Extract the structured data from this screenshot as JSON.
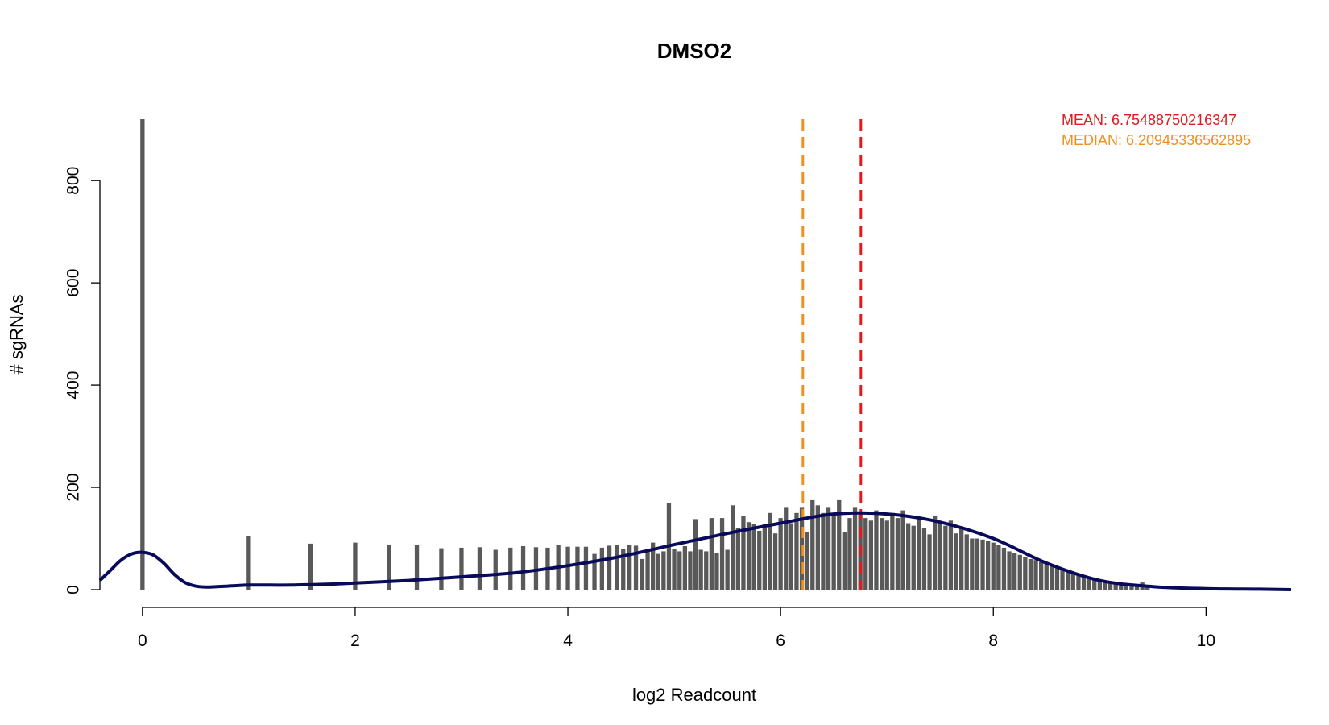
{
  "chart_data": {
    "type": "bar",
    "title": "DMSO2",
    "xlabel": "log2 Readcount",
    "ylabel": "# sgRNAs",
    "xlim": [
      -0.4,
      10.8
    ],
    "ylim": [
      0,
      920
    ],
    "x_ticks": [
      0,
      2,
      4,
      6,
      8,
      10
    ],
    "y_ticks": [
      0,
      200,
      400,
      600,
      800
    ],
    "bin_width": 0.05,
    "bar_color": "#595959",
    "histogram": {
      "x": [
        0.0,
        1.0,
        1.58,
        2.0,
        2.32,
        2.58,
        2.81,
        3.0,
        3.17,
        3.32,
        3.46,
        3.58,
        3.7,
        3.81,
        3.91,
        4.0,
        4.09,
        4.17,
        4.25,
        4.32,
        4.39,
        4.46,
        4.52,
        4.58,
        4.64,
        4.7,
        4.75,
        4.8,
        4.85,
        4.9,
        4.95,
        5.0,
        5.05,
        5.1,
        5.15,
        5.2,
        5.25,
        5.3,
        5.35,
        5.4,
        5.45,
        5.5,
        5.55,
        5.6,
        5.65,
        5.7,
        5.75,
        5.8,
        5.85,
        5.9,
        5.95,
        6.0,
        6.05,
        6.1,
        6.15,
        6.2,
        6.25,
        6.3,
        6.35,
        6.4,
        6.45,
        6.5,
        6.55,
        6.6,
        6.65,
        6.7,
        6.75,
        6.8,
        6.85,
        6.9,
        6.95,
        7.0,
        7.05,
        7.1,
        7.15,
        7.2,
        7.25,
        7.3,
        7.35,
        7.4,
        7.45,
        7.5,
        7.55,
        7.6,
        7.65,
        7.7,
        7.75,
        7.8,
        7.85,
        7.9,
        7.95,
        8.0,
        8.05,
        8.1,
        8.15,
        8.2,
        8.25,
        8.3,
        8.35,
        8.4,
        8.45,
        8.5,
        8.55,
        8.6,
        8.65,
        8.7,
        8.75,
        8.8,
        8.85,
        8.9,
        8.95,
        9.0,
        9.05,
        9.1,
        9.15,
        9.2,
        9.25,
        9.3,
        9.35,
        9.4,
        9.45
      ],
      "counts": [
        920,
        105,
        90,
        92,
        87,
        87,
        81,
        82,
        83,
        78,
        82,
        85,
        83,
        82,
        88,
        84,
        84,
        84,
        70,
        82,
        86,
        88,
        80,
        88,
        86,
        60,
        80,
        92,
        70,
        75,
        170,
        80,
        75,
        85,
        75,
        138,
        78,
        75,
        140,
        72,
        140,
        78,
        165,
        120,
        145,
        132,
        128,
        115,
        128,
        150,
        110,
        140,
        160,
        130,
        150,
        160,
        112,
        175,
        165,
        150,
        160,
        150,
        175,
        112,
        140,
        160,
        148,
        140,
        135,
        155,
        140,
        135,
        150,
        140,
        155,
        130,
        125,
        140,
        120,
        108,
        145,
        130,
        125,
        135,
        110,
        120,
        108,
        100,
        100,
        98,
        95,
        92,
        88,
        82,
        75,
        72,
        68,
        64,
        60,
        58,
        54,
        50,
        46,
        42,
        38,
        36,
        32,
        28,
        25,
        22,
        20,
        18,
        16,
        16,
        14,
        13,
        12,
        11,
        10,
        14,
        8
      ]
    },
    "density_curve": {
      "color": "#0a0a5c",
      "x": [
        -0.4,
        -0.3,
        -0.2,
        -0.1,
        0.0,
        0.1,
        0.2,
        0.3,
        0.4,
        0.5,
        0.6,
        0.7,
        0.8,
        0.9,
        1.0,
        1.2,
        1.4,
        1.6,
        1.8,
        2.0,
        2.5,
        3.0,
        3.5,
        4.0,
        4.5,
        5.0,
        5.5,
        6.0,
        6.5,
        7.0,
        7.5,
        8.0,
        8.5,
        9.0,
        9.5,
        10.0,
        10.5,
        10.8
      ],
      "y": [
        18,
        38,
        58,
        70,
        73,
        68,
        52,
        30,
        14,
        7,
        5,
        6,
        7,
        8,
        9,
        9,
        9,
        10,
        11,
        13,
        18,
        25,
        33,
        47,
        65,
        88,
        110,
        130,
        148,
        148,
        132,
        100,
        52,
        18,
        6,
        2,
        1,
        0
      ]
    },
    "reference_lines": [
      {
        "label": "MEAN: 6.75488750216347",
        "x": 6.75488750216347,
        "color": "#e31a1c"
      },
      {
        "label": "MEDIAN: 6.20945336562895",
        "x": 6.20945336562895,
        "color": "#f0901e"
      }
    ],
    "legend_position": "top-right"
  }
}
